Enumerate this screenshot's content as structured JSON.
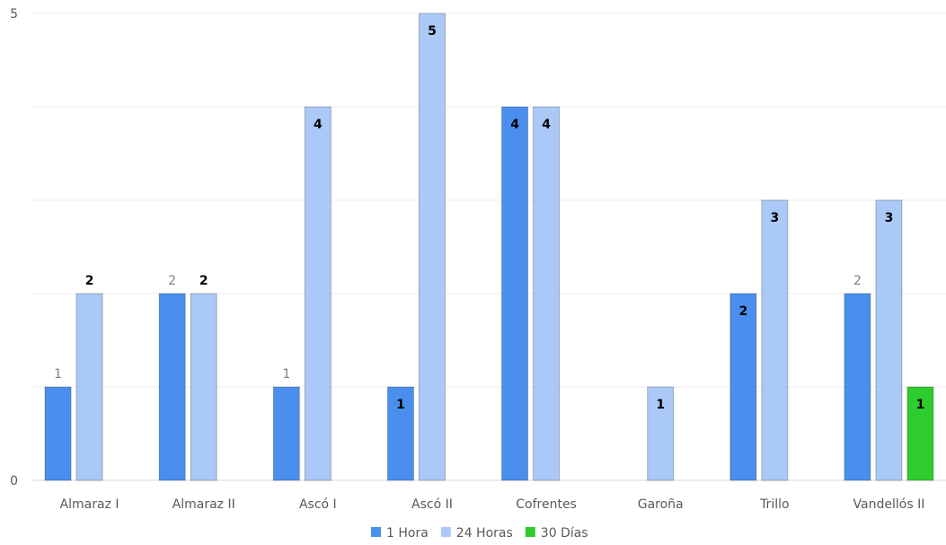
{
  "chart_data": {
    "type": "bar",
    "categories": [
      "Almaraz I",
      "Almaraz II",
      "Ascó I",
      "Ascó II",
      "Cofrentes",
      "Garoña",
      "Trillo",
      "Vandellós II"
    ],
    "series": [
      {
        "name": "1 Hora",
        "color": "#4a8fed",
        "values": [
          1,
          2,
          1,
          1,
          4,
          0,
          2,
          2
        ],
        "label_style": [
          "outside",
          "outside",
          "outside",
          "inside",
          "inside",
          null,
          "inside",
          "outside"
        ]
      },
      {
        "name": "24 Horas",
        "color": "#abc9f7",
        "values": [
          2,
          2,
          4,
          5,
          4,
          1,
          3,
          3
        ],
        "label_style": [
          "outside",
          "outside",
          "inside",
          "inside",
          "inside",
          "inside",
          "inside",
          "inside"
        ]
      },
      {
        "name": "30 Días",
        "color": "#2ecc2e",
        "values": [
          0,
          0,
          0,
          0,
          0,
          0,
          0,
          1
        ],
        "label_style": [
          null,
          null,
          null,
          null,
          null,
          null,
          null,
          "inside"
        ]
      }
    ],
    "yticks": [
      0,
      5
    ],
    "ylim": [
      0,
      5
    ],
    "grid": true,
    "legend_position": "bottom"
  }
}
